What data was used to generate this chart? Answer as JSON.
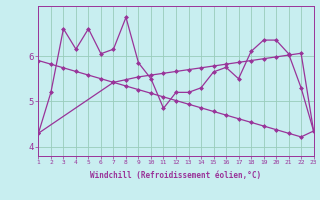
{
  "xlabel": "Windchill (Refroidissement éolien,°C)",
  "xlim": [
    1,
    23
  ],
  "ylim": [
    3.8,
    7.1
  ],
  "xticks": [
    1,
    2,
    3,
    4,
    5,
    6,
    7,
    8,
    9,
    10,
    11,
    12,
    13,
    14,
    15,
    16,
    17,
    18,
    19,
    20,
    21,
    22,
    23
  ],
  "yticks": [
    4,
    5,
    6
  ],
  "background_color": "#c8eef0",
  "grid_color": "#99ccbb",
  "line_color": "#993399",
  "marker": "D",
  "markersize": 2.5,
  "linewidth": 0.9,
  "series1_x": [
    1,
    2,
    3,
    4,
    5,
    6,
    7,
    8,
    9,
    10,
    11,
    12,
    13,
    14,
    15,
    16,
    17,
    18,
    19,
    20,
    21,
    22,
    23
  ],
  "series1_y": [
    4.3,
    5.2,
    6.6,
    6.15,
    6.6,
    6.05,
    6.15,
    6.85,
    5.85,
    5.5,
    4.85,
    5.2,
    5.2,
    5.3,
    5.65,
    5.75,
    5.5,
    6.1,
    6.35,
    6.35,
    6.05,
    5.3,
    4.35
  ],
  "series2_x": [
    1,
    7,
    8,
    9,
    10,
    11,
    12,
    13,
    14,
    15,
    16,
    17,
    18,
    19,
    20,
    21,
    22,
    23
  ],
  "series2_y": [
    4.3,
    5.42,
    5.48,
    5.54,
    5.58,
    5.62,
    5.66,
    5.7,
    5.74,
    5.78,
    5.82,
    5.86,
    5.9,
    5.94,
    5.98,
    6.02,
    6.06,
    4.35
  ],
  "series3_x": [
    1,
    2,
    3,
    4,
    5,
    6,
    7,
    8,
    9,
    10,
    11,
    12,
    13,
    14,
    15,
    16,
    17,
    18,
    19,
    20,
    21,
    22,
    23
  ],
  "series3_y": [
    5.9,
    5.82,
    5.74,
    5.66,
    5.58,
    5.5,
    5.42,
    5.34,
    5.26,
    5.18,
    5.1,
    5.02,
    4.94,
    4.86,
    4.78,
    4.7,
    4.62,
    4.54,
    4.46,
    4.38,
    4.3,
    4.22,
    4.35
  ]
}
